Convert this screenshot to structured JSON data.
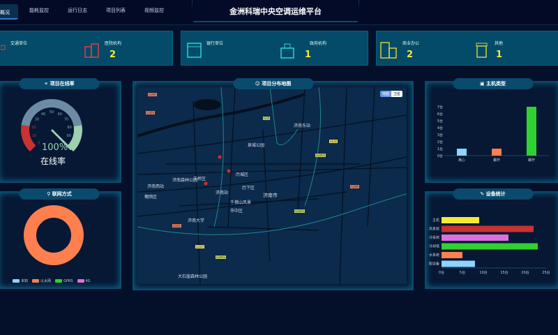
{
  "header": {
    "title": "金洲科瑞中央空调运维平台",
    "tabs": [
      "概况",
      "能耗监控",
      "运行日志",
      "项目列表",
      "视频监控"
    ]
  },
  "stats": [
    {
      "label": "交通单位",
      "value": "",
      "icon": "car-icon",
      "color": "#e04040"
    },
    {
      "label": "医院机构",
      "value": "2",
      "icon": "hospital-icon",
      "color": "#e04040"
    },
    {
      "label": "银行单位",
      "value": "",
      "icon": "bank-icon",
      "color": "#29d8d0"
    },
    {
      "label": "政府机构",
      "value": "1",
      "icon": "government-icon",
      "color": "#29d8d0"
    },
    {
      "label": "商业办公",
      "value": "2",
      "icon": "office-icon",
      "color": "#d0d040"
    },
    {
      "label": "其他",
      "value": "1",
      "icon": "building-icon",
      "color": "#d0d040"
    }
  ],
  "online": {
    "title": "项目在线率",
    "value": "100%",
    "label": "在线率",
    "percent": 100,
    "ticks": [
      "0",
      "10",
      "20",
      "30",
      "40",
      "50",
      "60",
      "70",
      "80",
      "90"
    ]
  },
  "network": {
    "title": "联网方式",
    "legend": [
      {
        "name": "未知",
        "color": "#8fd3ff"
      },
      {
        "name": "以太网",
        "color": "#ff7f4f"
      },
      {
        "name": "GPRS",
        "color": "#2fd230"
      },
      {
        "name": "4G",
        "color": "#dd70dd"
      }
    ],
    "values": [
      0,
      100,
      0,
      0
    ]
  },
  "map": {
    "title": "项目分布地图",
    "btn_map": "地图",
    "btn_sat": "卫星",
    "labels": [
      "济南市",
      "天桥区",
      "历城区",
      "历下区",
      "槐荫区",
      "济南西站",
      "济南站",
      "济南大学",
      "泉城公园",
      "千佛山风景",
      "济南东站",
      "大石崖森林公园",
      "济南森林公园",
      "市中区"
    ],
    "roads": [
      "G309",
      "G309",
      "G35",
      "G2001",
      "S102",
      "G2001",
      "G104",
      "G220",
      "G2001",
      "G308"
    ]
  },
  "host_type": {
    "title": "主机类型",
    "chart_data": {
      "type": "bar",
      "categories": [
        "离心",
        "螺杆",
        "螺杆"
      ],
      "values": [
        1,
        1,
        7
      ],
      "colors": [
        "#8fd3ff",
        "#ff7f4f",
        "#2fd230"
      ],
      "yticks": [
        "0台",
        "1台",
        "2台",
        "3台",
        "4台",
        "5台",
        "6台",
        "7台"
      ],
      "ylim": [
        0,
        7
      ]
    }
  },
  "devices": {
    "title": "设备统计",
    "chart_data": {
      "type": "bar",
      "orientation": "horizontal",
      "categories": [
        "主机",
        "风系统",
        "冷系统",
        "冷却塔",
        "水系统",
        "配设备"
      ],
      "values": [
        9,
        22,
        16,
        23,
        5,
        8
      ],
      "colors": [
        "#f5ea37",
        "#c83232",
        "#dd70dd",
        "#2fd230",
        "#ff7f4f",
        "#8fd3ff"
      ],
      "xticks": [
        "0台",
        "5台",
        "10台",
        "15台",
        "20台",
        "25台"
      ],
      "xlim": [
        0,
        25
      ]
    }
  }
}
